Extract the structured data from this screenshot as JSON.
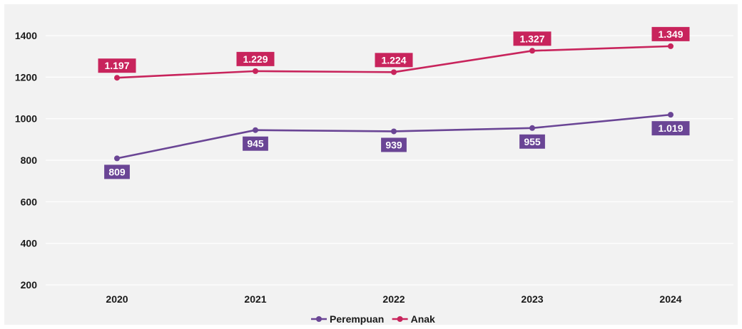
{
  "chart_data": {
    "type": "line",
    "categories": [
      "2020",
      "2021",
      "2022",
      "2023",
      "2024"
    ],
    "series": [
      {
        "name": "Perempuan",
        "values": [
          809,
          945,
          939,
          955,
          1019
        ],
        "labels": [
          "809",
          "945",
          "939",
          "955",
          "1.019"
        ],
        "color": "#6a4595",
        "label_position": "below"
      },
      {
        "name": "Anak",
        "values": [
          1197,
          1229,
          1224,
          1327,
          1349
        ],
        "labels": [
          "1.197",
          "1.229",
          "1.224",
          "1.327",
          "1.349"
        ],
        "color": "#c8245c",
        "label_position": "above"
      }
    ],
    "y_ticks": [
      "200",
      "400",
      "600",
      "800",
      "1000",
      "1200",
      "1400"
    ],
    "ylim": [
      200,
      1400
    ],
    "grid": true,
    "legend_position": "bottom"
  }
}
